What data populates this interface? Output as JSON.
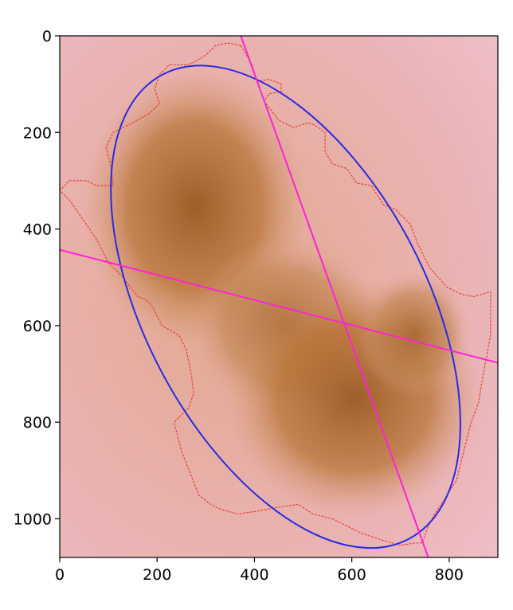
{
  "figure": {
    "x_ticks": [
      {
        "value": 0,
        "label": "0"
      },
      {
        "value": 200,
        "label": "200"
      },
      {
        "value": 400,
        "label": "400"
      },
      {
        "value": 600,
        "label": "600"
      },
      {
        "value": 800,
        "label": "800"
      }
    ],
    "y_ticks": [
      {
        "value": 0,
        "label": "0"
      },
      {
        "value": 200,
        "label": "200"
      },
      {
        "value": 400,
        "label": "400"
      },
      {
        "value": 600,
        "label": "600"
      },
      {
        "value": 800,
        "label": "800"
      },
      {
        "value": 1000,
        "label": "1000"
      }
    ],
    "x_range": [
      0,
      900
    ],
    "y_range": [
      0,
      1080
    ],
    "y_inverted": true,
    "colors": {
      "skin": "#e8b0b8",
      "lesion": "#b8763c",
      "contour": "#e8463a",
      "ellipse": "#2a2ae0",
      "axes_lines": "#ff22d8"
    },
    "ellipse": {
      "cx": 464,
      "cy": 561,
      "a": 540,
      "b": 290,
      "angle_deg": 62
    },
    "major_axis": [
      [
        372,
        0
      ],
      [
        757,
        1080
      ]
    ],
    "minor_axis": [
      [
        0,
        443
      ],
      [
        900,
        677
      ]
    ],
    "contour": [
      [
        372,
        20
      ],
      [
        395,
        60
      ],
      [
        405,
        95
      ],
      [
        430,
        90
      ],
      [
        455,
        100
      ],
      [
        455,
        115
      ],
      [
        430,
        120
      ],
      [
        420,
        135
      ],
      [
        450,
        175
      ],
      [
        480,
        190
      ],
      [
        510,
        180
      ],
      [
        525,
        185
      ],
      [
        545,
        200
      ],
      [
        545,
        240
      ],
      [
        560,
        265
      ],
      [
        590,
        275
      ],
      [
        610,
        305
      ],
      [
        640,
        310
      ],
      [
        665,
        350
      ],
      [
        690,
        360
      ],
      [
        720,
        390
      ],
      [
        735,
        430
      ],
      [
        760,
        480
      ],
      [
        795,
        520
      ],
      [
        825,
        535
      ],
      [
        850,
        540
      ],
      [
        885,
        530
      ],
      [
        885,
        620
      ],
      [
        870,
        700
      ],
      [
        860,
        760
      ],
      [
        845,
        800
      ],
      [
        830,
        860
      ],
      [
        815,
        920
      ],
      [
        790,
        960
      ],
      [
        770,
        990
      ],
      [
        755,
        1020
      ],
      [
        745,
        1050
      ],
      [
        730,
        1050
      ],
      [
        700,
        1055
      ],
      [
        665,
        1045
      ],
      [
        620,
        1030
      ],
      [
        590,
        1015
      ],
      [
        560,
        1000
      ],
      [
        520,
        990
      ],
      [
        490,
        970
      ],
      [
        455,
        975
      ],
      [
        400,
        985
      ],
      [
        365,
        990
      ],
      [
        330,
        980
      ],
      [
        310,
        970
      ],
      [
        285,
        950
      ],
      [
        270,
        910
      ],
      [
        250,
        860
      ],
      [
        235,
        800
      ],
      [
        265,
        770
      ],
      [
        275,
        740
      ],
      [
        270,
        700
      ],
      [
        260,
        650
      ],
      [
        245,
        620
      ],
      [
        210,
        600
      ],
      [
        190,
        560
      ],
      [
        175,
        545
      ],
      [
        160,
        540
      ],
      [
        130,
        500
      ],
      [
        100,
        470
      ],
      [
        75,
        420
      ],
      [
        20,
        340
      ],
      [
        0,
        320
      ],
      [
        20,
        300
      ],
      [
        55,
        300
      ],
      [
        75,
        310
      ],
      [
        110,
        310
      ],
      [
        105,
        270
      ],
      [
        95,
        230
      ],
      [
        110,
        200
      ],
      [
        150,
        180
      ],
      [
        185,
        160
      ],
      [
        205,
        140
      ],
      [
        195,
        110
      ],
      [
        205,
        80
      ],
      [
        225,
        60
      ],
      [
        260,
        60
      ],
      [
        275,
        55
      ],
      [
        300,
        40
      ],
      [
        320,
        20
      ],
      [
        345,
        15
      ],
      [
        372,
        20
      ]
    ]
  }
}
